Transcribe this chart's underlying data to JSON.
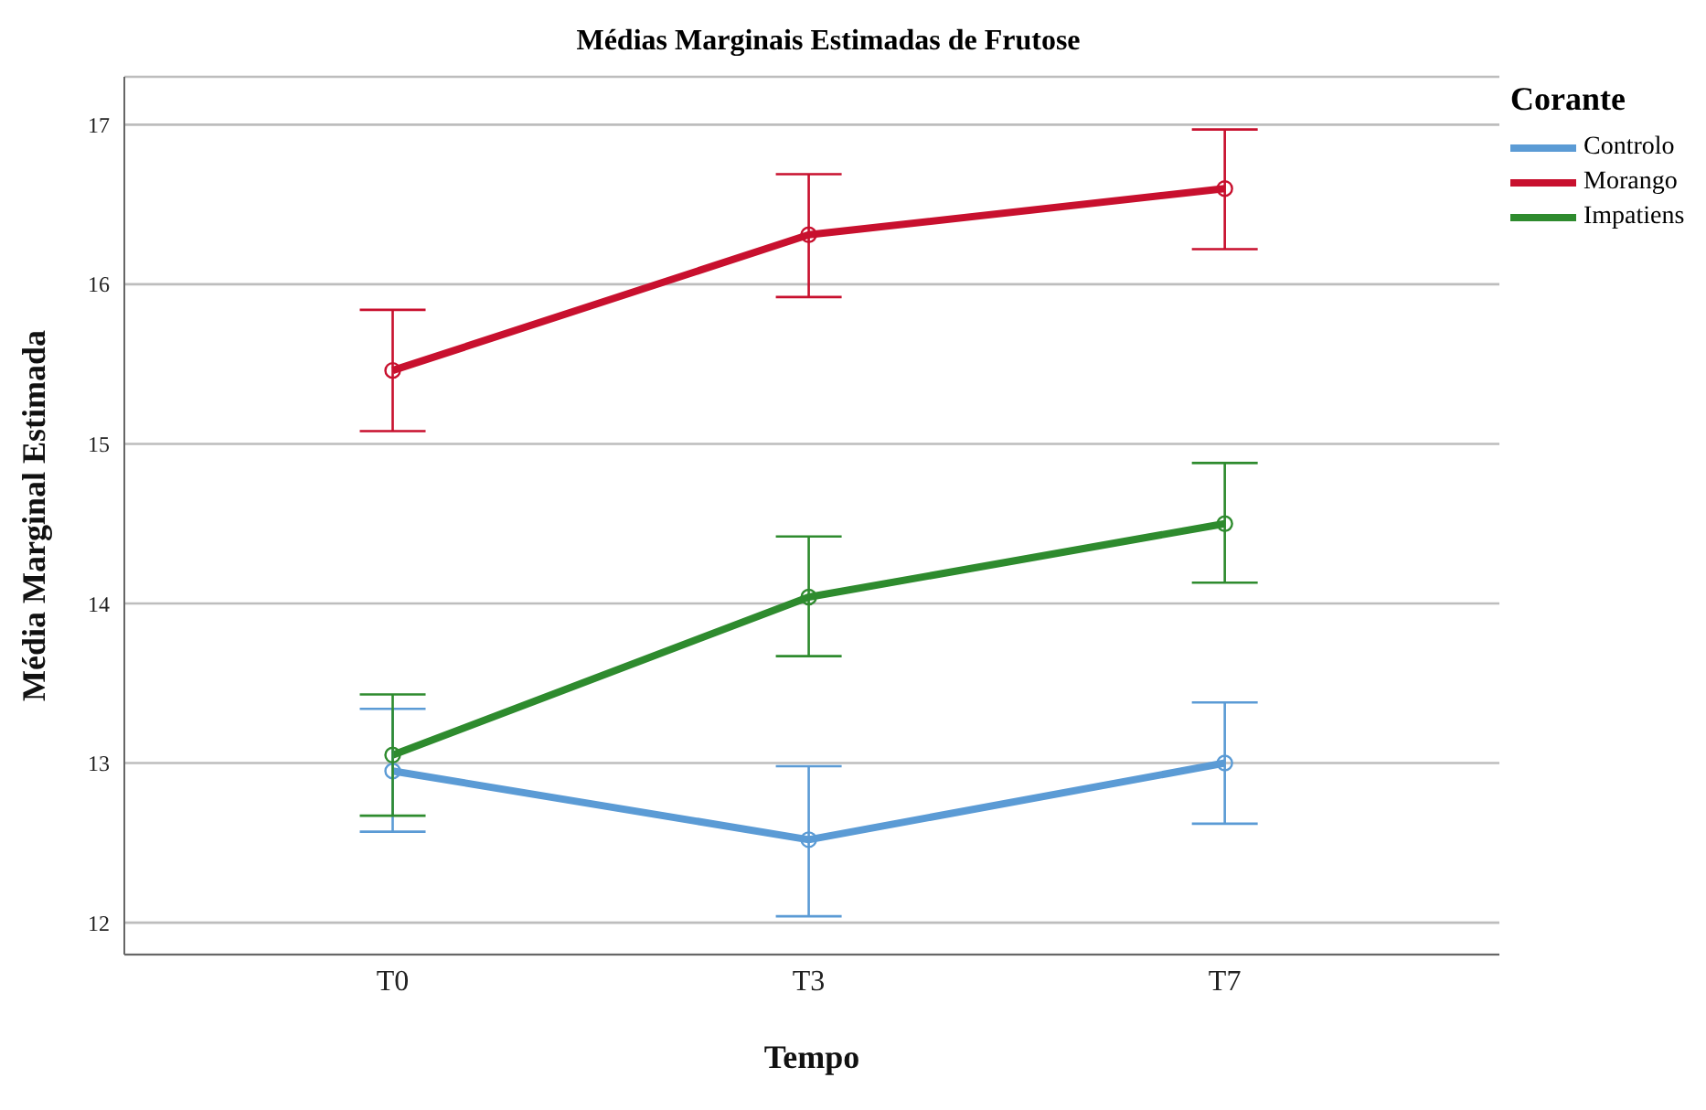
{
  "chart_data": {
    "type": "line",
    "title": "Médias Marginais Estimadas de Frutose",
    "xlabel": "Tempo",
    "ylabel": "Média Marginal Estimada",
    "legend_title": "Corante",
    "categories": [
      "T0",
      "T3",
      "T7"
    ],
    "series": [
      {
        "name": "Controlo",
        "color": "#5b9bd5",
        "values": [
          12.95,
          12.52,
          13.0
        ],
        "errors": [
          [
            12.57,
            13.34
          ],
          [
            12.04,
            12.98
          ],
          [
            12.62,
            13.38
          ]
        ]
      },
      {
        "name": "Morango",
        "color": "#c8102e",
        "values": [
          15.46,
          16.31,
          16.6
        ],
        "errors": [
          [
            15.08,
            15.84
          ],
          [
            15.92,
            16.69
          ],
          [
            16.22,
            16.97
          ]
        ]
      },
      {
        "name": "Impatiens",
        "color": "#2e8b2e",
        "values": [
          13.05,
          14.04,
          14.5
        ],
        "errors": [
          [
            12.67,
            13.43
          ],
          [
            13.67,
            14.42
          ],
          [
            14.13,
            14.88
          ]
        ]
      }
    ],
    "ylim": [
      11.8,
      17.3
    ],
    "yticks": [
      12,
      13,
      14,
      15,
      16,
      17
    ],
    "grid": "y",
    "legend": "top right",
    "marker": "circle",
    "line_style": "solid"
  }
}
